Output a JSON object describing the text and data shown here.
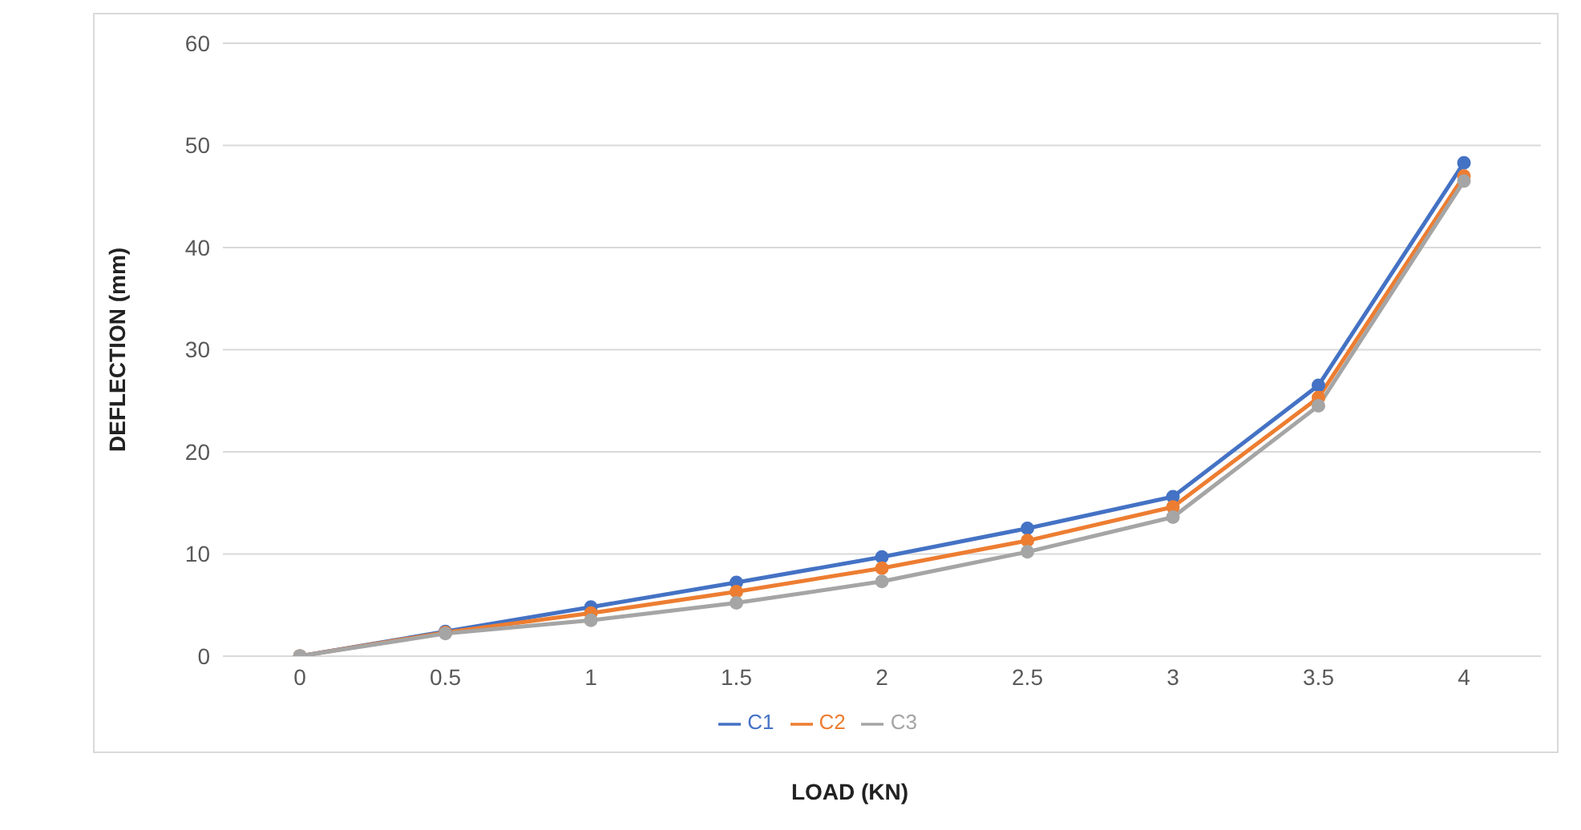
{
  "chart_data": {
    "type": "line",
    "xlabel": "LOAD (KN)",
    "ylabel": "DEFLECTION (mm)",
    "categories": [
      "0",
      "0.5",
      "1",
      "1.5",
      "2",
      "2.5",
      "3",
      "3.5",
      "4"
    ],
    "series": [
      {
        "name": "C1",
        "color": "#4472c4",
        "values": [
          0,
          2.4,
          4.8,
          7.2,
          9.7,
          12.5,
          15.6,
          26.5,
          48.3
        ]
      },
      {
        "name": "C2",
        "color": "#ed7d31",
        "values": [
          0,
          2.3,
          4.2,
          6.3,
          8.6,
          11.3,
          14.6,
          25.3,
          47
        ]
      },
      {
        "name": "C3",
        "color": "#a5a5a5",
        "values": [
          0,
          2.2,
          3.5,
          5.2,
          7.3,
          10.2,
          13.6,
          24.5,
          46.5
        ]
      }
    ],
    "ylim": [
      0,
      60
    ],
    "yticks": [
      0,
      10,
      20,
      30,
      40,
      50,
      60
    ],
    "grid": "y",
    "legend": "bottom",
    "marker": "circle",
    "line_style": "solid"
  }
}
